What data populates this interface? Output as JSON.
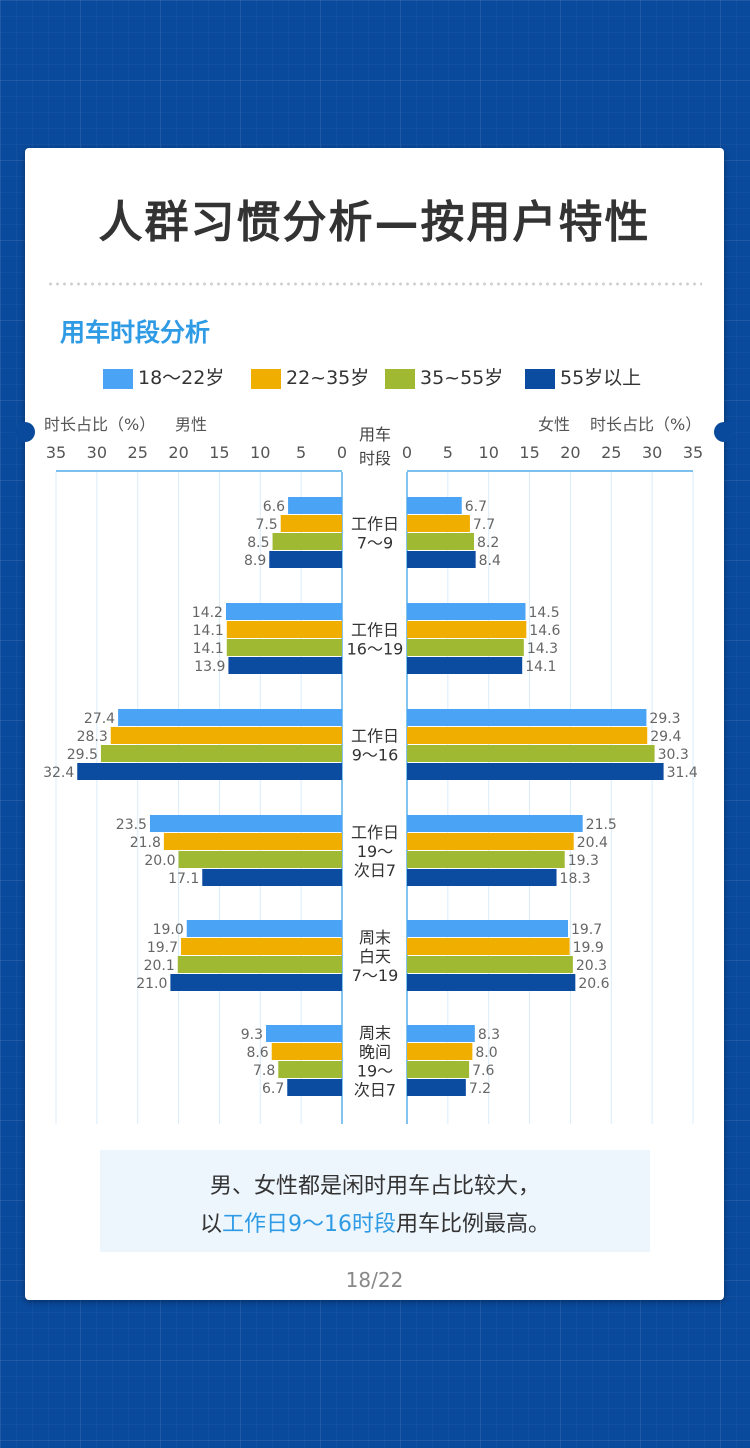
{
  "header": {
    "title": "人群习惯分析—按用户特性"
  },
  "section": {
    "title": "用车时段分析"
  },
  "colors": {
    "s1": "#4aa3f4",
    "s2": "#f0ae00",
    "s3": "#a0b933",
    "s4": "#0b4ba0",
    "accent": "#2f9be5"
  },
  "chart_data": {
    "type": "bar",
    "orientation": "horizontal-butterfly",
    "left_axis_label": "时长占比（%）",
    "left_group_label": "男性",
    "right_axis_label": "时长占比（%）",
    "right_group_label": "女性",
    "center_header": [
      "用车",
      "时段"
    ],
    "ticks": [
      "35",
      "30",
      "25",
      "20",
      "15",
      "10",
      "5",
      "0"
    ],
    "right_ticks": [
      "0",
      "5",
      "10",
      "15",
      "20",
      "25",
      "30",
      "35"
    ],
    "xlim": [
      0,
      35
    ],
    "grid": true,
    "legend_position": "top",
    "series_names": [
      "18～22岁",
      "22~35岁",
      "35~55岁",
      "55岁以上"
    ],
    "categories": [
      {
        "label": [
          "工作日",
          "7～9"
        ],
        "male": [
          6.6,
          7.5,
          8.5,
          8.9
        ],
        "female": [
          6.7,
          7.7,
          8.2,
          8.4
        ]
      },
      {
        "label": [
          "工作日",
          "16～19"
        ],
        "male": [
          14.2,
          14.1,
          14.1,
          13.9
        ],
        "female": [
          14.5,
          14.6,
          14.3,
          14.1
        ]
      },
      {
        "label": [
          "工作日",
          "9～16"
        ],
        "male": [
          27.4,
          28.3,
          29.5,
          32.4
        ],
        "female": [
          29.3,
          29.4,
          30.3,
          31.4
        ]
      },
      {
        "label": [
          "工作日",
          "19～",
          "次日7"
        ],
        "male": [
          23.5,
          21.8,
          20.0,
          17.1
        ],
        "female": [
          21.5,
          20.4,
          19.3,
          18.3
        ]
      },
      {
        "label": [
          "周末",
          "白天",
          "7～19"
        ],
        "male": [
          19.0,
          19.7,
          20.1,
          21.0
        ],
        "female": [
          19.7,
          19.9,
          20.3,
          20.6
        ]
      },
      {
        "label": [
          "周末",
          "晚间",
          "19～",
          "次日7"
        ],
        "male": [
          9.3,
          8.6,
          7.8,
          6.7
        ],
        "female": [
          8.3,
          8.0,
          7.6,
          7.2
        ]
      }
    ]
  },
  "conclusion": {
    "line1": "男、女性都是闲时用车占比较大，",
    "line2_prefix": "以",
    "line2_highlight": "工作日9～16时段",
    "line2_suffix": "用车比例最高。"
  },
  "footer": {
    "page": "18/22"
  }
}
